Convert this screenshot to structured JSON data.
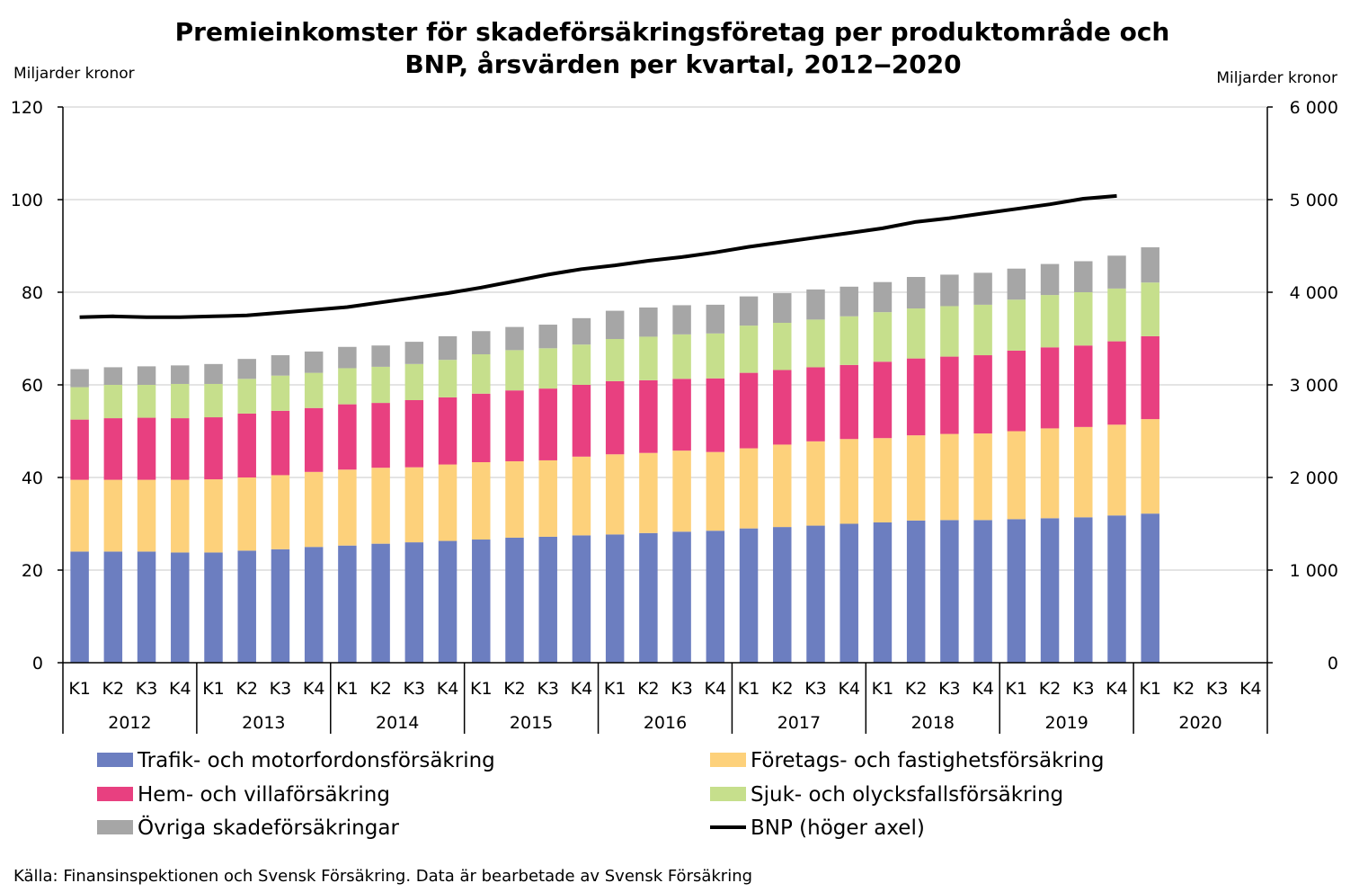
{
  "chart_data": {
    "type": "bar",
    "stacked": true,
    "title_line1": "Premieinkomster för skadeförsäkringsföretag per produktområde och",
    "title_line2": "BNP, årsvärden per kvartal, 2012‒2020",
    "left_axis_label": "Miljarder kronor",
    "right_axis_label": "Miljarder kronor",
    "y_left_ticks": [
      "0",
      "20",
      "40",
      "60",
      "80",
      "100",
      "120"
    ],
    "y_right_ticks": [
      "0",
      "1 000",
      "2 000",
      "3 000",
      "4 000",
      "5 000",
      "6 000"
    ],
    "ylim_left": [
      0,
      120
    ],
    "ylim_right": [
      0,
      6000
    ],
    "grid": true,
    "quarters": [
      "K1",
      "K2",
      "K3",
      "K4"
    ],
    "years": [
      "2012",
      "2013",
      "2014",
      "2015",
      "2016",
      "2017",
      "2018",
      "2019",
      "2020"
    ],
    "series": [
      {
        "name": "Trafik- och motorfordonsförsäkring",
        "color": "#6c7ec0",
        "values": [
          24,
          24,
          24,
          23.8,
          23.8,
          24.2,
          24.5,
          25,
          25.3,
          25.7,
          26,
          26.3,
          26.6,
          27,
          27.2,
          27.5,
          27.7,
          28,
          28.3,
          28.5,
          29,
          29.3,
          29.6,
          30,
          30.3,
          30.7,
          30.8,
          30.8,
          31,
          31.2,
          31.4,
          31.8,
          32.2
        ]
      },
      {
        "name": "Företags- och fastighetsförsäkring",
        "color": "#fdd17b",
        "values": [
          15.5,
          15.5,
          15.5,
          15.7,
          15.8,
          15.8,
          16,
          16.2,
          16.4,
          16.4,
          16.2,
          16.5,
          16.7,
          16.5,
          16.5,
          17,
          17.3,
          17.3,
          17.5,
          17,
          17.3,
          17.8,
          18.2,
          18.3,
          18.2,
          18.4,
          18.6,
          18.7,
          19,
          19.4,
          19.5,
          19.6,
          20.4
        ]
      },
      {
        "name": "Hem- och villaförsäkring",
        "color": "#e84080",
        "values": [
          13,
          13.3,
          13.4,
          13.3,
          13.4,
          13.8,
          13.9,
          13.8,
          14.1,
          14,
          14.5,
          14.5,
          14.8,
          15.3,
          15.5,
          15.5,
          15.8,
          15.7,
          15.5,
          15.9,
          16.3,
          16.1,
          16,
          16,
          16.5,
          16.6,
          16.7,
          16.9,
          17.4,
          17.5,
          17.6,
          18,
          17.9
        ]
      },
      {
        "name": "Sjuk- och olycksfallsförsäkring",
        "color": "#c6df8c",
        "values": [
          7,
          7.2,
          7.1,
          7.4,
          7.2,
          7.5,
          7.6,
          7.6,
          7.8,
          7.8,
          7.8,
          8.1,
          8.5,
          8.7,
          8.7,
          8.7,
          9.1,
          9.4,
          9.6,
          9.7,
          10.2,
          10.2,
          10.3,
          10.5,
          10.7,
          10.8,
          10.9,
          10.9,
          11,
          11.3,
          11.5,
          11.4,
          11.6
        ]
      },
      {
        "name": "Övriga skadeförsäkringar",
        "color": "#a6a6a6",
        "values": [
          3.9,
          3.8,
          4.0,
          4.0,
          4.3,
          4.3,
          4.4,
          4.6,
          4.6,
          4.6,
          4.8,
          5.1,
          5,
          5,
          5.1,
          5.7,
          6.1,
          6.3,
          6.3,
          6.2,
          6.3,
          6.4,
          6.5,
          6.4,
          6.5,
          6.8,
          6.8,
          6.9,
          6.7,
          6.7,
          6.7,
          7.1,
          7.6
        ]
      },
      {
        "name": "BNP (höger axel)",
        "color": "#000000",
        "type": "line",
        "axis": "right",
        "values": [
          3730,
          3740,
          3730,
          3730,
          3740,
          3750,
          3780,
          3810,
          3840,
          3890,
          3940,
          3990,
          4050,
          4120,
          4190,
          4250,
          4290,
          4340,
          4380,
          4430,
          4490,
          4540,
          4590,
          4640,
          4690,
          4760,
          4800,
          4850,
          4900,
          4950,
          5010,
          5040
        ]
      }
    ],
    "source": "Källa: Finansinspektionen och Svensk Försäkring. Data är bearbetade av Svensk Försäkring"
  }
}
